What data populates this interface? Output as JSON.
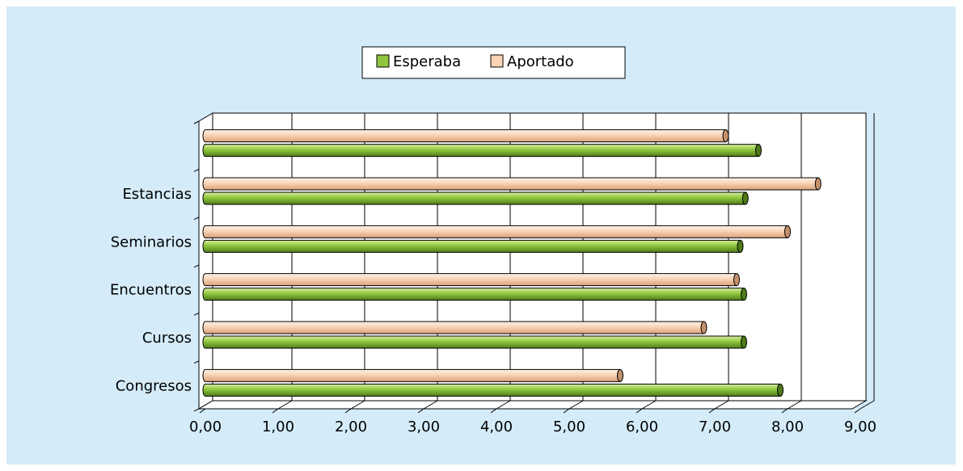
{
  "chart_data": {
    "type": "bar",
    "orientation": "horizontal",
    "style": "3d-cylinder",
    "categories": [
      "Congresos",
      "Cursos",
      "Encuentros",
      "Seminarios",
      "Estancias",
      ""
    ],
    "series": [
      {
        "name": "Esperaba",
        "color": "#8fc63f",
        "values": [
          7.9,
          7.4,
          7.4,
          7.35,
          7.42,
          7.6
        ]
      },
      {
        "name": "Aportado",
        "color": "#f9d4b6",
        "values": [
          5.7,
          6.85,
          7.3,
          8.0,
          8.42,
          7.15
        ]
      }
    ],
    "x_tick_labels": [
      "0,00",
      "1,00",
      "2,00",
      "3,00",
      "4,00",
      "5,00",
      "6,00",
      "7,00",
      "8,00",
      "9,00"
    ],
    "xlim": [
      0,
      9
    ],
    "grid": true,
    "legend_position": "top"
  }
}
